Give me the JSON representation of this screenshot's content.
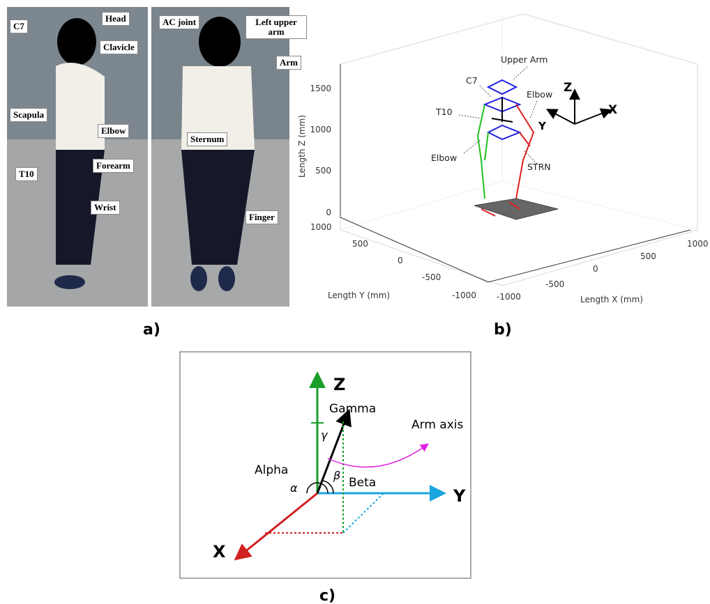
{
  "panel_a": {
    "label": "a)",
    "annotations": [
      "Head",
      "C7",
      "Clavicle",
      "Scapula",
      "Elbow",
      "T10",
      "Forearm",
      "Wrist",
      "AC joint",
      "Left upper arm",
      "Arm",
      "Sternum",
      "Finger"
    ]
  },
  "panel_b": {
    "label": "b)",
    "z_axis_label": "Length Z (mm)",
    "y_axis_label": "Length Y (mm)",
    "x_axis_label": "Length X (mm)",
    "z_ticks": [
      0,
      500,
      1000,
      1500
    ],
    "y_ticks": [
      1000,
      500,
      0,
      -500,
      -1000
    ],
    "x_ticks": [
      -1000,
      -500,
      0,
      500,
      1000
    ],
    "annotations": [
      "Upper Arm",
      "C7",
      "Elbow",
      "T10",
      "Elbow",
      "STRN"
    ],
    "axis_names": [
      "Z",
      "X",
      "Y"
    ]
  },
  "panel_c": {
    "label": "c)",
    "axes": [
      "Z",
      "Y",
      "X"
    ],
    "angle_names": [
      "Gamma",
      "Alpha",
      "Beta"
    ],
    "symbols": [
      "γ",
      "α",
      "β"
    ],
    "arm_label": "Arm axis"
  }
}
